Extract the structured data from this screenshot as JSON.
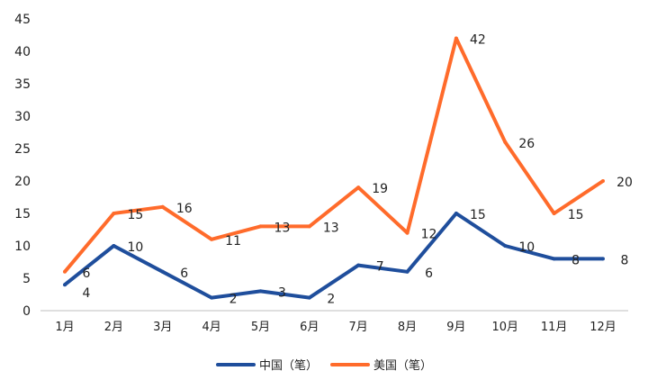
{
  "chart_data": {
    "type": "line",
    "categories": [
      "1月",
      "2月",
      "3月",
      "4月",
      "5月",
      "6月",
      "7月",
      "8月",
      "9月",
      "10月",
      "11月",
      "12月"
    ],
    "series": [
      {
        "name": "中国（笔）",
        "color": "#1f4e9c",
        "values": [
          4,
          10,
          6,
          2,
          3,
          2,
          7,
          6,
          15,
          10,
          8,
          8
        ]
      },
      {
        "name": "美国（笔）",
        "color": "#ff6b2b",
        "values": [
          6,
          15,
          16,
          11,
          13,
          13,
          19,
          12,
          42,
          26,
          15,
          20
        ]
      }
    ],
    "ylim": [
      0,
      45
    ],
    "yticks": [
      0,
      5,
      10,
      15,
      20,
      25,
      30,
      35,
      40,
      45
    ],
    "grid": false,
    "data_labels": true,
    "legend": "bottom"
  }
}
